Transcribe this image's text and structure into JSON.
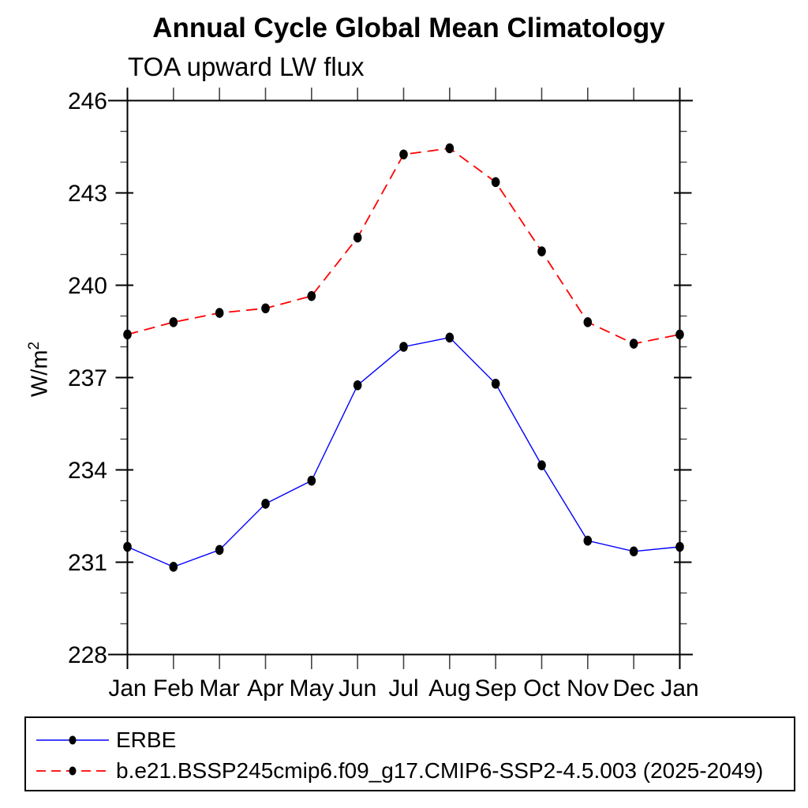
{
  "header": {
    "title": "Annual Cycle Global Mean Climatology",
    "subtitle": "TOA upward LW flux"
  },
  "y_axis": {
    "base": "W/m",
    "exp": "2"
  },
  "chart_data": {
    "type": "line",
    "title": "Annual Cycle Global Mean Climatology",
    "subtitle": "TOA upward LW flux",
    "xlabel": "",
    "ylabel": "W/m²",
    "ylim": [
      228,
      246
    ],
    "yticks": [
      228,
      231,
      234,
      237,
      240,
      243,
      246
    ],
    "minor_tick_interval": 1,
    "grid": false,
    "legend_position": "bottom",
    "categories": [
      "Jan",
      "Feb",
      "Mar",
      "Apr",
      "May",
      "Jun",
      "Jul",
      "Aug",
      "Sep",
      "Oct",
      "Nov",
      "Dec",
      "Jan"
    ],
    "series": [
      {
        "name": "ERBE",
        "color": "#0000ff",
        "line_style": "solid",
        "marker": "black-dot-marker",
        "marker_color": "#000000",
        "values": [
          231.5,
          230.85,
          231.4,
          232.9,
          233.65,
          236.75,
          238.0,
          238.3,
          236.8,
          234.15,
          231.7,
          231.35,
          231.5
        ]
      },
      {
        "name": "b.e21.BSSP245cmip6.f09_g17.CMIP6-SSP2-4.5.003 (2025-2049)",
        "color": "#ff0000",
        "line_style": "dashed",
        "marker": "black-dot-marker",
        "marker_color": "#000000",
        "values": [
          238.4,
          238.8,
          239.1,
          239.25,
          239.65,
          241.55,
          244.25,
          244.45,
          243.35,
          241.1,
          238.8,
          238.1,
          238.4
        ]
      }
    ]
  },
  "legend": {
    "entries": [
      {
        "label": "ERBE"
      },
      {
        "label": "b.e21.BSSP245cmip6.f09_g17.CMIP6-SSP2-4.5.003 (2025-2049)"
      }
    ]
  }
}
